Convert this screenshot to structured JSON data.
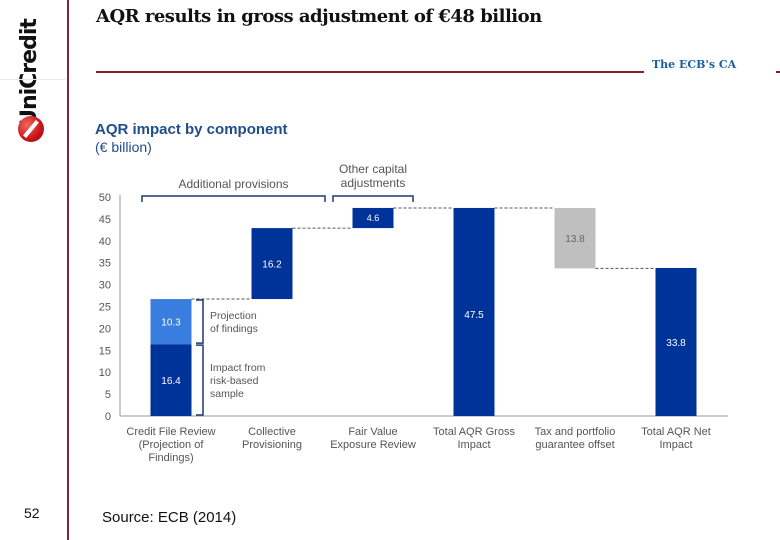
{
  "logo": {
    "name": "UniCredit",
    "icon": "unicredit-logo-icon"
  },
  "slide": {
    "title": "AQR results in gross adjustment of €48 billion",
    "section": "The ECB's CA",
    "page_number": "52",
    "source": "Source: ECB (2014)"
  },
  "colors": {
    "dark_blue": "#003399",
    "light_blue": "#3a7de0",
    "grey": "#bfbfbf",
    "brand_red": "#8b1a2e",
    "title_blue": "#1f4e8c"
  },
  "chart_data": {
    "type": "bar",
    "subtype": "waterfall",
    "title": "AQR impact by component",
    "subtitle": "(€ billion)",
    "xlabel": "",
    "ylabel": "",
    "ylim": [
      0,
      50
    ],
    "yticks": [
      0,
      5,
      10,
      15,
      20,
      25,
      30,
      35,
      40,
      45,
      50
    ],
    "grid": false,
    "categories": [
      "Credit File Review (Projection of Findings)",
      "Collective Provisioning",
      "Fair Value Exposure Review",
      "Total AQR Gross Impact",
      "Tax and portfolio guarantee offset",
      "Total AQR Net Impact"
    ],
    "category_lines": [
      [
        "Credit File Review",
        "(Projection of",
        "Findings)"
      ],
      [
        "Collective",
        "Provisioning"
      ],
      [
        "Fair Value",
        "Exposure Review"
      ],
      [
        "Total AQR Gross",
        "Impact"
      ],
      [
        "Tax and portfolio",
        "guarantee offset"
      ],
      [
        "Total AQR Net",
        "Impact"
      ]
    ],
    "segments": [
      {
        "category": 0,
        "base": 0,
        "value": 16.4,
        "label": "16.4",
        "color": "dark_blue",
        "name": "Impact from risk-based sample"
      },
      {
        "category": 0,
        "base": 16.4,
        "value": 10.3,
        "label": "10.3",
        "color": "light_blue",
        "name": "Projection of findings"
      },
      {
        "category": 1,
        "base": 26.7,
        "value": 16.2,
        "label": "16.2",
        "color": "dark_blue"
      },
      {
        "category": 2,
        "base": 42.9,
        "value": 4.6,
        "label": "4.6",
        "color": "dark_blue"
      },
      {
        "category": 3,
        "base": 0,
        "value": 47.5,
        "label": "47.5",
        "color": "dark_blue"
      },
      {
        "category": 4,
        "base": 33.7,
        "value": 13.8,
        "label": "13.8",
        "color": "grey"
      },
      {
        "category": 5,
        "base": 0,
        "value": 33.8,
        "label": "33.8",
        "color": "dark_blue"
      }
    ],
    "connectors": [
      {
        "from": 0,
        "to": 1,
        "level": 26.7
      },
      {
        "from": 1,
        "to": 2,
        "level": 42.9
      },
      {
        "from": 2,
        "to": 3,
        "level": 47.5
      },
      {
        "from": 3,
        "to": 4,
        "level": 47.5
      },
      {
        "from": 4,
        "to": 5,
        "level": 33.7
      }
    ],
    "group_brackets": [
      {
        "label_lines": [
          "Additional provisions"
        ],
        "from_category": 0,
        "to_category": 1
      },
      {
        "label_lines": [
          "Other capital",
          "adjustments"
        ],
        "from_category": 2,
        "to_category": 2
      }
    ],
    "annotations": [
      {
        "lines": [
          "Projection",
          "of findings"
        ],
        "from": 16.4,
        "to": 26.7
      },
      {
        "lines": [
          "Impact from",
          "risk-based",
          "sample"
        ],
        "from": 0,
        "to": 16.4
      }
    ]
  }
}
